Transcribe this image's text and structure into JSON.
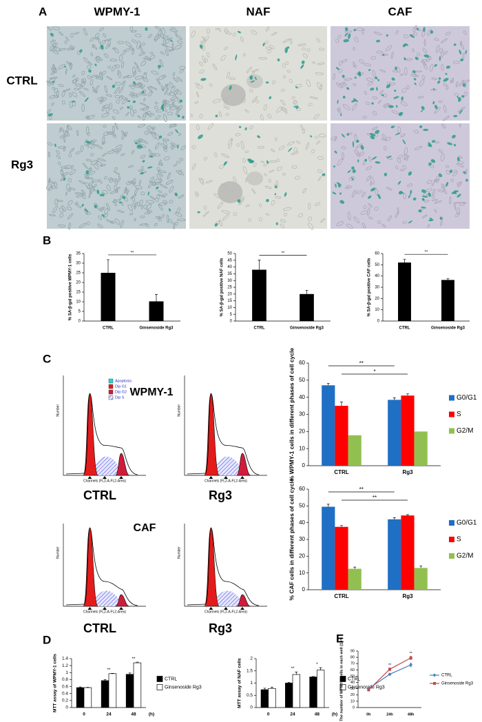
{
  "panels": [
    "A",
    "B",
    "C",
    "D",
    "E"
  ],
  "micrographs": {
    "columns": [
      "WPMY-1",
      "NAF",
      "CAF"
    ],
    "rows": [
      "CTRL",
      "Rg3"
    ]
  },
  "flow": {
    "titles": [
      "WPMY-1",
      "CAF"
    ],
    "conditions": [
      "CTRL",
      "Rg3"
    ],
    "legend": [
      "Apoptosis",
      "Dip G1",
      "Dip G2",
      "Dip S"
    ],
    "xlabel": "Channels (FL2-A-FL2-Area)",
    "ylabel": "Number"
  },
  "chart_data": [
    {
      "type": "bar",
      "ylabel": "% SA-β-gal positive WPMY-1 cells",
      "categories": [
        "CTRL",
        "Ginsenoside Rg3"
      ],
      "values": [
        25,
        10.2
      ],
      "errors": [
        6.8,
        3.6
      ],
      "color": "#000000",
      "ylim": [
        0,
        35
      ],
      "yticks": [
        0,
        5,
        10,
        15,
        20,
        25,
        30,
        35
      ],
      "annotations": [
        "**"
      ]
    },
    {
      "type": "bar",
      "ylabel": "% SA-β-gal positive NAF cells",
      "categories": [
        "CTRL",
        "Ginsenoside Rg3"
      ],
      "values": [
        38,
        20
      ],
      "errors": [
        7.2,
        2.8
      ],
      "color": "#000000",
      "ylim": [
        0,
        50
      ],
      "yticks": [
        0,
        5,
        10,
        15,
        20,
        25,
        30,
        35,
        40,
        45,
        50
      ],
      "annotations": [
        "**"
      ]
    },
    {
      "type": "bar",
      "ylabel": "% SA-β-gal positive CAF cells",
      "categories": [
        "CTRL",
        "Ginsenoside Rg3"
      ],
      "values": [
        52,
        36.5
      ],
      "errors": [
        3,
        1.2
      ],
      "color": "#000000",
      "ylim": [
        0,
        60
      ],
      "yticks": [
        0,
        10,
        20,
        30,
        40,
        50,
        60
      ],
      "annotations": [
        "**"
      ]
    },
    {
      "type": "bar",
      "ylabel": "% WPMY-1 cells in different phases of cell cycle",
      "categories": [
        "CTRL",
        "Rg3"
      ],
      "series": [
        {
          "name": "G0/G1",
          "color": "#1f6fc5",
          "values": [
            47,
            38.5
          ],
          "errors": [
            1.2,
            1.2
          ]
        },
        {
          "name": "S",
          "color": "#ff0000",
          "values": [
            35,
            41
          ],
          "errors": [
            2.2,
            1
          ]
        },
        {
          "name": "G2/M",
          "color": "#92c050",
          "values": [
            17.8,
            20
          ]
        }
      ],
      "ylim": [
        0,
        60
      ],
      "yticks": [
        0,
        10,
        20,
        30,
        40,
        50,
        60
      ],
      "annotations": [
        "**",
        "*"
      ],
      "legend": "right"
    },
    {
      "type": "bar",
      "ylabel": "% CAF cells in different phases of cell cycle",
      "categories": [
        "CTRL",
        "Rg3"
      ],
      "series": [
        {
          "name": "G0/G1",
          "color": "#1f6fc5",
          "values": [
            49.5,
            42
          ],
          "errors": [
            1.5,
            1
          ]
        },
        {
          "name": "S",
          "color": "#ff0000",
          "values": [
            37.5,
            44.3
          ],
          "errors": [
            0.8,
            0.5
          ]
        },
        {
          "name": "G2/M",
          "color": "#92c050",
          "values": [
            12.5,
            13
          ],
          "errors": [
            1,
            1.2
          ]
        }
      ],
      "ylim": [
        0,
        60
      ],
      "yticks": [
        0,
        10,
        20,
        30,
        40,
        50,
        60
      ],
      "annotations": [
        "**",
        "**"
      ],
      "legend": "right"
    },
    {
      "type": "bar",
      "ylabel": "MTT assay of WPMY-1 cells",
      "xlabel": "(h)",
      "categories": [
        "0",
        "24",
        "48"
      ],
      "series": [
        {
          "name": "CTRL",
          "color": "#000000",
          "values": [
            0.57,
            0.77,
            0.95
          ],
          "errors": [
            0.02,
            0.03,
            0.04
          ]
        },
        {
          "name": "Ginsenoside Rg3",
          "color": "#ffffff",
          "values": [
            0.57,
            0.97,
            1.28
          ],
          "errors": [
            0.01,
            0.01,
            0.02
          ]
        }
      ],
      "edgecolor": "#000000",
      "ylim": [
        0,
        1.4
      ],
      "yticks": [
        0,
        0.2,
        0.4,
        0.6,
        0.8,
        1,
        1.2,
        1.4
      ],
      "annotations": [
        null,
        "**",
        "**"
      ],
      "legend": "right"
    },
    {
      "type": "bar",
      "ylabel": "MTT assay of NAF cells",
      "xlabel": "(h)",
      "categories": [
        "0",
        "24",
        "48"
      ],
      "series": [
        {
          "name": "CTRL",
          "color": "#000000",
          "values": [
            0.73,
            1.0,
            1.25
          ],
          "errors": [
            0.06,
            0.03,
            0.02
          ]
        },
        {
          "name": "Ginsenoside Rg3",
          "color": "#ffffff",
          "values": [
            0.78,
            1.35,
            1.53
          ],
          "errors": [
            0.05,
            0.1,
            0.1
          ]
        }
      ],
      "edgecolor": "#000000",
      "ylim": [
        0,
        2
      ],
      "yticks": [
        0,
        0.5,
        1,
        1.5,
        2
      ],
      "annotations": [
        null,
        "**",
        "*"
      ],
      "legend": "right"
    },
    {
      "type": "line",
      "ylabel": "The number of WPMY-1 cells in each well (10⁴)",
      "categories": [
        "0h",
        "24h",
        "48h"
      ],
      "series": [
        {
          "name": "CTRL",
          "color": "#4a7ebb",
          "marker": "diamond",
          "values": [
            30,
            53,
            68
          ],
          "errors": [
            2,
            1.5,
            3
          ]
        },
        {
          "name": "Ginsenoside Rg3",
          "color": "#be4b48",
          "marker": "square",
          "values": [
            28,
            61,
            79
          ],
          "errors": [
            1.5,
            2,
            2.5
          ]
        }
      ],
      "ylim": [
        0,
        90
      ],
      "yticks": [
        0,
        10,
        20,
        30,
        40,
        50,
        60,
        70,
        80,
        90
      ],
      "annotations": [
        null,
        "**",
        "**"
      ],
      "legend": "right"
    }
  ]
}
